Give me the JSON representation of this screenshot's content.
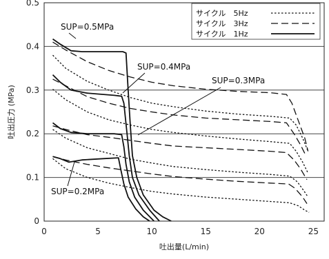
{
  "chart_data": {
    "type": "line",
    "xlabel": "吐出量(L/min)",
    "ylabel": "吐出圧力 (MPa)",
    "xlim": [
      0,
      26
    ],
    "ylim": [
      0,
      0.5
    ],
    "x_ticks": [
      "0",
      "5",
      "10",
      "15",
      "20",
      "25"
    ],
    "y_ticks": [
      "0",
      "0.1",
      "0.2",
      "0.3",
      "0.4",
      "0.5"
    ],
    "grid": "horizontal",
    "legend": {
      "placement": "top-right",
      "entries": [
        {
          "label": "サイクル　5Hz",
          "style": "dotted"
        },
        {
          "label": "サイクル　3Hz",
          "style": "dashed"
        },
        {
          "label": "サイクル　1Hz",
          "style": "solid"
        }
      ]
    },
    "annotations": [
      {
        "text": "SUP=0.5MPa",
        "point": [
          3.2,
          0.4
        ]
      },
      {
        "text": "SUP=0.4MPa",
        "point": [
          6.0,
          0.315
        ]
      },
      {
        "text": "SUP=0.3MPa",
        "point": [
          8.0,
          0.195
        ]
      },
      {
        "text": "SUP=0.2MPa",
        "point": [
          2.5,
          0.142
        ]
      }
    ],
    "series": [
      {
        "style": "solid",
        "points": [
          [
            0.8,
            0.417
          ],
          [
            1.5,
            0.405
          ],
          [
            2.5,
            0.39
          ],
          [
            3.5,
            0.388
          ],
          [
            7.3,
            0.388
          ],
          [
            7.6,
            0.385
          ],
          [
            7.8,
            0.3
          ],
          [
            8.0,
            0.22
          ],
          [
            8.2,
            0.15
          ],
          [
            8.6,
            0.1
          ],
          [
            9.2,
            0.06
          ],
          [
            10.2,
            0.025
          ],
          [
            11.0,
            0.01
          ],
          [
            11.8,
            0.0
          ]
        ]
      },
      {
        "style": "solid",
        "points": [
          [
            0.8,
            0.335
          ],
          [
            1.5,
            0.318
          ],
          [
            2.5,
            0.3
          ],
          [
            4.0,
            0.293
          ],
          [
            6.5,
            0.288
          ],
          [
            7.2,
            0.286
          ],
          [
            7.4,
            0.27
          ],
          [
            7.7,
            0.2
          ],
          [
            7.9,
            0.15
          ],
          [
            8.2,
            0.1
          ],
          [
            8.8,
            0.06
          ],
          [
            9.8,
            0.025
          ],
          [
            10.7,
            0.0
          ]
        ]
      },
      {
        "style": "solid",
        "points": [
          [
            0.8,
            0.225
          ],
          [
            1.5,
            0.212
          ],
          [
            2.5,
            0.203
          ],
          [
            4.0,
            0.2
          ],
          [
            6.5,
            0.2
          ],
          [
            7.2,
            0.198
          ],
          [
            7.4,
            0.17
          ],
          [
            7.6,
            0.13
          ],
          [
            7.9,
            0.09
          ],
          [
            8.4,
            0.055
          ],
          [
            9.2,
            0.025
          ],
          [
            10.2,
            0.0
          ]
        ]
      },
      {
        "style": "solid",
        "points": [
          [
            0.8,
            0.148
          ],
          [
            1.5,
            0.143
          ],
          [
            2.3,
            0.135
          ],
          [
            3.5,
            0.14
          ],
          [
            5.5,
            0.143
          ],
          [
            6.9,
            0.145
          ],
          [
            7.1,
            0.12
          ],
          [
            7.4,
            0.085
          ],
          [
            7.8,
            0.055
          ],
          [
            8.5,
            0.028
          ],
          [
            9.2,
            0.01
          ],
          [
            9.8,
            0.0
          ]
        ]
      },
      {
        "style": "dashed",
        "points": [
          [
            0.8,
            0.41
          ],
          [
            2.0,
            0.392
          ],
          [
            4.0,
            0.365
          ],
          [
            6.0,
            0.345
          ],
          [
            8.0,
            0.33
          ],
          [
            10.0,
            0.318
          ],
          [
            12.0,
            0.31
          ],
          [
            15.0,
            0.302
          ],
          [
            18.0,
            0.297
          ],
          [
            21.0,
            0.294
          ],
          [
            22.5,
            0.29
          ],
          [
            23.0,
            0.27
          ],
          [
            23.6,
            0.23
          ],
          [
            24.2,
            0.19
          ],
          [
            24.5,
            0.16
          ]
        ]
      },
      {
        "style": "dashed",
        "points": [
          [
            0.8,
            0.325
          ],
          [
            2.0,
            0.31
          ],
          [
            4.0,
            0.285
          ],
          [
            6.0,
            0.27
          ],
          [
            8.0,
            0.258
          ],
          [
            10.0,
            0.25
          ],
          [
            12.0,
            0.243
          ],
          [
            15.0,
            0.236
          ],
          [
            18.0,
            0.232
          ],
          [
            21.0,
            0.228
          ],
          [
            22.5,
            0.225
          ],
          [
            23.2,
            0.2
          ],
          [
            23.8,
            0.175
          ],
          [
            24.3,
            0.15
          ]
        ]
      },
      {
        "style": "dashed",
        "points": [
          [
            0.8,
            0.218
          ],
          [
            2.0,
            0.21
          ],
          [
            4.0,
            0.198
          ],
          [
            6.0,
            0.192
          ],
          [
            8.0,
            0.185
          ],
          [
            10.0,
            0.178
          ],
          [
            12.0,
            0.172
          ],
          [
            15.0,
            0.168
          ],
          [
            18.0,
            0.164
          ],
          [
            21.0,
            0.16
          ],
          [
            22.5,
            0.157
          ],
          [
            23.2,
            0.14
          ],
          [
            23.8,
            0.12
          ],
          [
            24.4,
            0.095
          ]
        ]
      },
      {
        "style": "dashed",
        "points": [
          [
            0.8,
            0.148
          ],
          [
            2.0,
            0.14
          ],
          [
            4.0,
            0.13
          ],
          [
            6.0,
            0.122
          ],
          [
            8.0,
            0.115
          ],
          [
            10.0,
            0.108
          ],
          [
            12.0,
            0.102
          ],
          [
            15.0,
            0.096
          ],
          [
            18.0,
            0.091
          ],
          [
            21.0,
            0.087
          ],
          [
            22.7,
            0.085
          ],
          [
            23.3,
            0.075
          ],
          [
            24.0,
            0.055
          ],
          [
            24.4,
            0.04
          ]
        ]
      },
      {
        "style": "dotted",
        "points": [
          [
            0.8,
            0.38
          ],
          [
            2.0,
            0.35
          ],
          [
            4.0,
            0.32
          ],
          [
            6.0,
            0.3
          ],
          [
            8.0,
            0.283
          ],
          [
            10.0,
            0.27
          ],
          [
            12.0,
            0.262
          ],
          [
            15.0,
            0.252
          ],
          [
            18.0,
            0.245
          ],
          [
            21.0,
            0.24
          ],
          [
            22.8,
            0.236
          ],
          [
            23.4,
            0.22
          ],
          [
            24.0,
            0.19
          ],
          [
            24.5,
            0.16
          ]
        ]
      },
      {
        "style": "dotted",
        "points": [
          [
            0.8,
            0.302
          ],
          [
            2.0,
            0.278
          ],
          [
            4.0,
            0.25
          ],
          [
            6.0,
            0.232
          ],
          [
            8.0,
            0.22
          ],
          [
            10.0,
            0.21
          ],
          [
            12.0,
            0.203
          ],
          [
            15.0,
            0.195
          ],
          [
            18.0,
            0.188
          ],
          [
            21.0,
            0.182
          ],
          [
            22.8,
            0.178
          ],
          [
            23.4,
            0.16
          ],
          [
            24.0,
            0.135
          ],
          [
            24.5,
            0.11
          ]
        ]
      },
      {
        "style": "dotted",
        "points": [
          [
            0.8,
            0.21
          ],
          [
            2.0,
            0.19
          ],
          [
            4.0,
            0.168
          ],
          [
            6.0,
            0.155
          ],
          [
            8.0,
            0.142
          ],
          [
            10.0,
            0.133
          ],
          [
            12.0,
            0.125
          ],
          [
            15.0,
            0.118
          ],
          [
            18.0,
            0.112
          ],
          [
            21.0,
            0.107
          ],
          [
            22.8,
            0.103
          ],
          [
            23.5,
            0.09
          ],
          [
            24.1,
            0.07
          ],
          [
            24.5,
            0.055
          ]
        ]
      },
      {
        "style": "dotted",
        "points": [
          [
            0.8,
            0.143
          ],
          [
            2.0,
            0.12
          ],
          [
            4.0,
            0.1
          ],
          [
            6.0,
            0.087
          ],
          [
            8.0,
            0.077
          ],
          [
            10.0,
            0.068
          ],
          [
            12.0,
            0.062
          ],
          [
            15.0,
            0.055
          ],
          [
            18.0,
            0.05
          ],
          [
            21.0,
            0.045
          ],
          [
            22.8,
            0.042
          ],
          [
            23.6,
            0.035
          ],
          [
            24.2,
            0.025
          ],
          [
            24.6,
            0.02
          ]
        ]
      }
    ]
  }
}
